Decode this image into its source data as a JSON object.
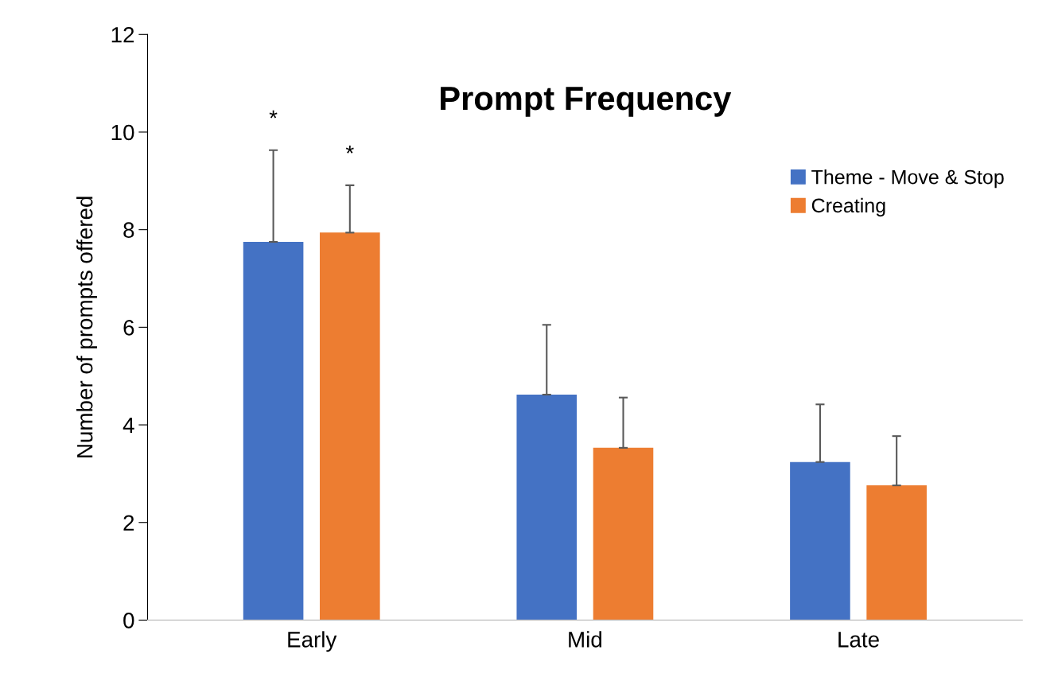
{
  "chart_data": {
    "type": "bar",
    "title": "Prompt Frequency",
    "ylabel": "Number of prompts offered",
    "categories": [
      "Early",
      "Mid",
      "Late"
    ],
    "series": [
      {
        "name": "Theme - Move & Stop",
        "color": "#4472c4",
        "values": [
          7.75,
          4.62,
          3.24
        ],
        "errors": [
          [
            7.75,
            9.63
          ],
          [
            4.62,
            6.05
          ],
          [
            3.24,
            4.42
          ]
        ]
      },
      {
        "name": "Creating",
        "color": "#ed7d31",
        "values": [
          7.94,
          3.53,
          2.76
        ],
        "errors": [
          [
            7.94,
            8.91
          ],
          [
            3.53,
            4.56
          ],
          [
            2.76,
            3.77
          ]
        ]
      }
    ],
    "annotations": [
      "*",
      "*"
    ],
    "ylim": [
      0,
      12
    ],
    "yticks": [
      0,
      2,
      4,
      6,
      8,
      10,
      12
    ],
    "grid": false,
    "legend": "top right"
  }
}
